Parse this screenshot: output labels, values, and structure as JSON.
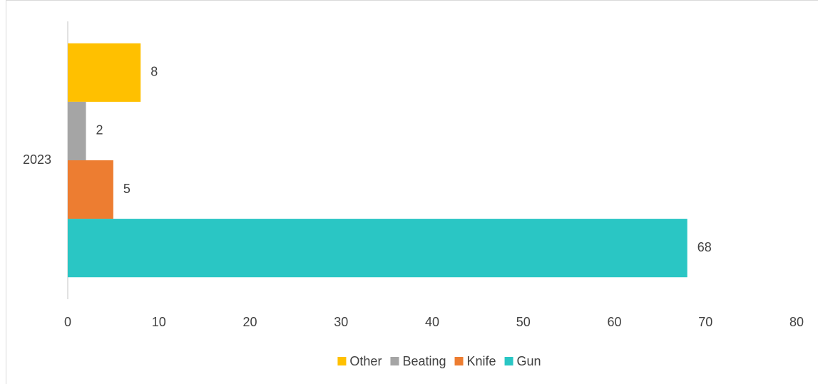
{
  "chart_data": {
    "type": "hbar",
    "categories": [
      "2023"
    ],
    "series": [
      {
        "name": "Other",
        "color": "#ffc000",
        "values": [
          8
        ]
      },
      {
        "name": "Beating",
        "color": "#a5a5a5",
        "values": [
          2
        ]
      },
      {
        "name": "Knife",
        "color": "#ed7d31",
        "values": [
          5
        ]
      },
      {
        "name": "Gun",
        "color": "#2ac6c4",
        "values": [
          68
        ]
      }
    ],
    "xlim": [
      0,
      80
    ],
    "xticks": [
      0,
      10,
      20,
      30,
      40,
      50,
      60,
      70,
      80
    ],
    "grid": false,
    "legend": "bottom"
  }
}
